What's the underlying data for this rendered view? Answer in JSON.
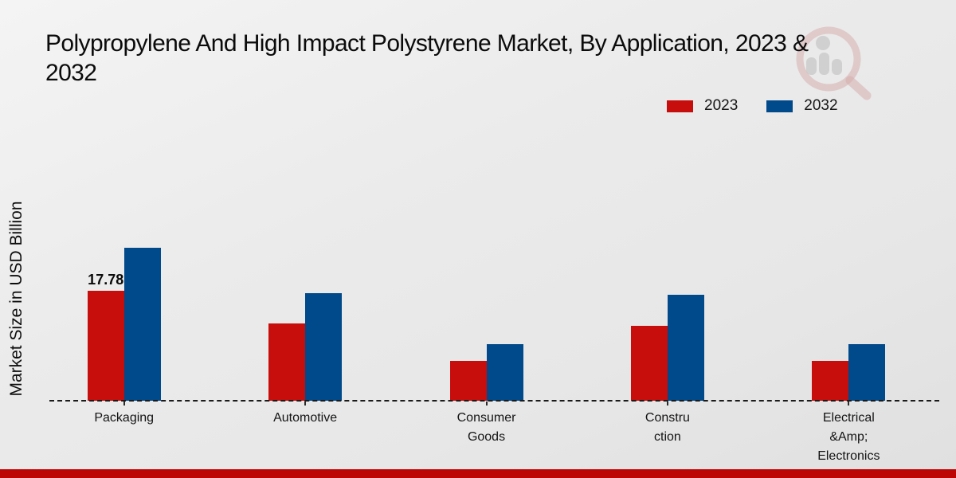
{
  "title": {
    "line1": "Polypropylene And High Impact Polystyrene Market, By Application, 2023 &",
    "line2": "2032"
  },
  "y_axis_label": "Market Size in USD Billion",
  "legend": {
    "items": [
      {
        "label": "2023",
        "color": "#c80d0d"
      },
      {
        "label": "2032",
        "color": "#00498a"
      }
    ]
  },
  "watermark_icon": "market-research-magnifier-logo",
  "colors": {
    "series_2023": "#c80d0d",
    "series_2032": "#00498a",
    "bottom_strip": "#bb0605",
    "axis_line": "#1b1b1b",
    "background": "#ebebeb"
  },
  "chart_data": {
    "type": "bar",
    "title": "Polypropylene And High Impact Polystyrene Market, By Application, 2023 & 2032",
    "xlabel": "",
    "ylabel": "Market Size in USD Billion",
    "legend_position": "top-right",
    "grid": false,
    "baseline_style": "dashed",
    "categories": [
      "Packaging",
      "Automotive",
      "Consumer Goods",
      "Construction",
      "Electrical &Amp; Electronics"
    ],
    "category_label_lines": [
      [
        "Packaging"
      ],
      [
        "Automotive"
      ],
      [
        "Consumer",
        "Goods"
      ],
      [
        "Constru",
        "ction"
      ],
      [
        "Electrical",
        "&Amp;",
        "Electronics"
      ]
    ],
    "series": [
      {
        "name": "2023",
        "color": "#c80d0d",
        "values": [
          17.78,
          12.5,
          6.5,
          12.1,
          6.5
        ]
      },
      {
        "name": "2032",
        "color": "#00498a",
        "values": [
          24.8,
          17.4,
          9.2,
          17.2,
          9.1
        ]
      }
    ],
    "data_labels": [
      {
        "series": "2023",
        "category": "Packaging",
        "text": "17.78"
      }
    ],
    "ylim": [
      0,
      28
    ]
  }
}
